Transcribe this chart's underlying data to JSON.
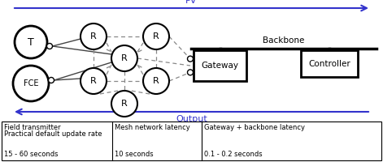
{
  "pv_label": "PV",
  "output_label": "Output",
  "backbone_label": "Backbone",
  "pv_color": "#3333cc",
  "output_color": "#3333cc",
  "node_color": "white",
  "node_edge_color": "black",
  "box_edge_color": "black",
  "dashed_color": "#888888",
  "solid_conn_color": "#555555",
  "figure_bg": "white",
  "cell1_line1": "Field transmitter",
  "cell1_line2": "Practical default update rate",
  "cell1_line3": "15 - 60 seconds",
  "cell2_line1": "Mesh network latency",
  "cell2_line2": "10 seconds",
  "cell3_line1": "Gateway + backbone latency",
  "cell3_line2": "0.1 - 0.2 seconds"
}
